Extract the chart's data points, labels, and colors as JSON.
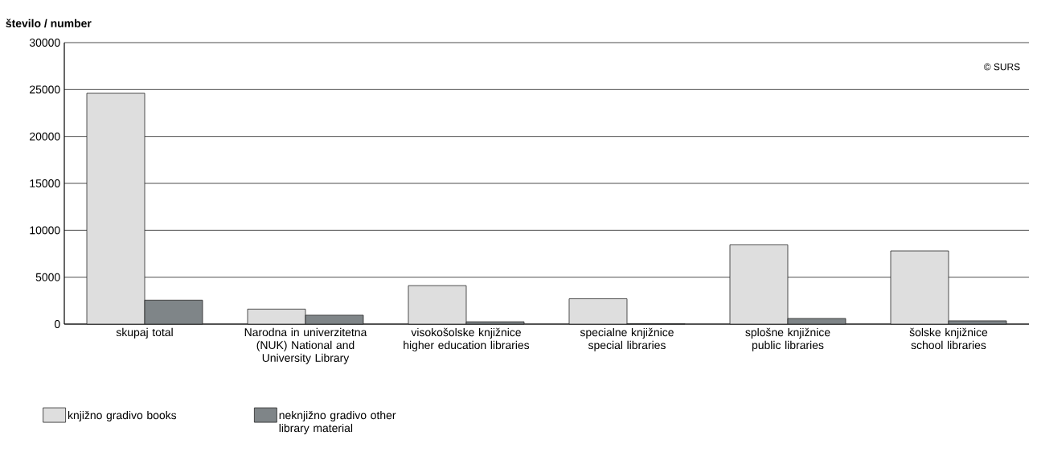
{
  "chart_data": {
    "type": "bar",
    "ylabel": "število / number",
    "categories": [
      "skupaj total",
      "Narodna in univerzitetna (NUK) National and University Library",
      "visokošolske knjižnice higher education libraries",
      "specialne knjižnice special libraries",
      "splošne knjižnice public libraries",
      "šolske knjižnice school libraries"
    ],
    "series": [
      {
        "name": "knjižno gradivo books",
        "color": "#dedede",
        "values": [
          24600,
          1600,
          4100,
          2700,
          8450,
          7800
        ]
      },
      {
        "name": "neknjižno gradivo other library material",
        "color": "#7f8588",
        "values": [
          2550,
          950,
          250,
          50,
          600,
          350
        ]
      }
    ],
    "ylim": [
      0,
      30000
    ],
    "yticks": [
      0,
      5000,
      10000,
      15000,
      20000,
      25000,
      30000
    ],
    "grid": "y",
    "legend": "bottom left",
    "annotations": [
      "© SURS"
    ]
  }
}
